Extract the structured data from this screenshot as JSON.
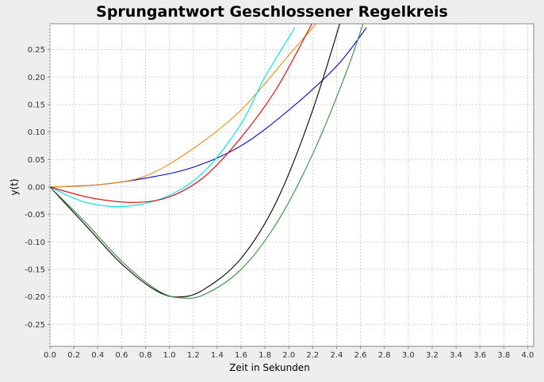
{
  "chart_data": {
    "type": "line",
    "title": "Sprungantwort Geschlossener Regelkreis",
    "xlabel": "Zeit in Sekunden",
    "ylabel": "y(t)",
    "xlim": [
      0.0,
      4.05
    ],
    "ylim": [
      -0.29,
      0.297
    ],
    "grid": true,
    "x_ticks": [
      "0.0",
      "0.2",
      "0.4",
      "0.6",
      "0.8",
      "1.0",
      "1.2",
      "1.4",
      "1.6",
      "1.8",
      "2.0",
      "2.2",
      "2.4",
      "2.6",
      "2.8",
      "3.0",
      "3.2",
      "3.4",
      "3.6",
      "3.8",
      "4.0"
    ],
    "y_ticks": [
      "0.25",
      "0.20",
      "0.15",
      "0.10",
      "0.05",
      "0.00",
      "-0.05",
      "-0.10",
      "-0.15",
      "-0.20",
      "-0.25"
    ],
    "series": [
      {
        "color": "#0000cc",
        "x": [
          0,
          0.4,
          0.8,
          1.2,
          1.6,
          2.0,
          2.4,
          2.65
        ],
        "y": [
          0,
          0.004,
          0.016,
          0.036,
          0.075,
          0.14,
          0.22,
          0.29
        ]
      },
      {
        "color": "#e8901a",
        "x": [
          0,
          0.4,
          0.8,
          1.2,
          1.6,
          2.0,
          2.2,
          2.4
        ],
        "y": [
          0,
          0.004,
          0.02,
          0.07,
          0.14,
          0.24,
          0.29,
          0.34
        ]
      },
      {
        "color": "#00e0e0",
        "x": [
          0,
          0.3,
          0.65,
          1.0,
          1.3,
          1.6,
          1.8,
          2.05
        ],
        "y": [
          0,
          -0.028,
          -0.035,
          -0.015,
          0.03,
          0.115,
          0.2,
          0.29
        ]
      },
      {
        "color": "#dd0000",
        "x": [
          0,
          0.35,
          0.7,
          1.0,
          1.3,
          1.6,
          1.9,
          2.2
        ],
        "y": [
          0,
          -0.02,
          -0.028,
          -0.018,
          0.02,
          0.09,
          0.18,
          0.3
        ]
      },
      {
        "color": "#000000",
        "x": [
          0,
          0.3,
          0.6,
          0.9,
          1.1,
          1.3,
          1.6,
          1.9,
          2.2,
          2.5
        ],
        "y": [
          0,
          -0.07,
          -0.14,
          -0.19,
          -0.2,
          -0.185,
          -0.13,
          -0.025,
          0.14,
          0.35
        ]
      },
      {
        "color": "#3a8a3a",
        "x": [
          0,
          0.3,
          0.6,
          0.9,
          1.1,
          1.3,
          1.6,
          1.9,
          2.2,
          2.5,
          2.7
        ],
        "y": [
          0,
          -0.065,
          -0.135,
          -0.188,
          -0.202,
          -0.195,
          -0.15,
          -0.065,
          0.06,
          0.22,
          0.35
        ]
      }
    ]
  }
}
